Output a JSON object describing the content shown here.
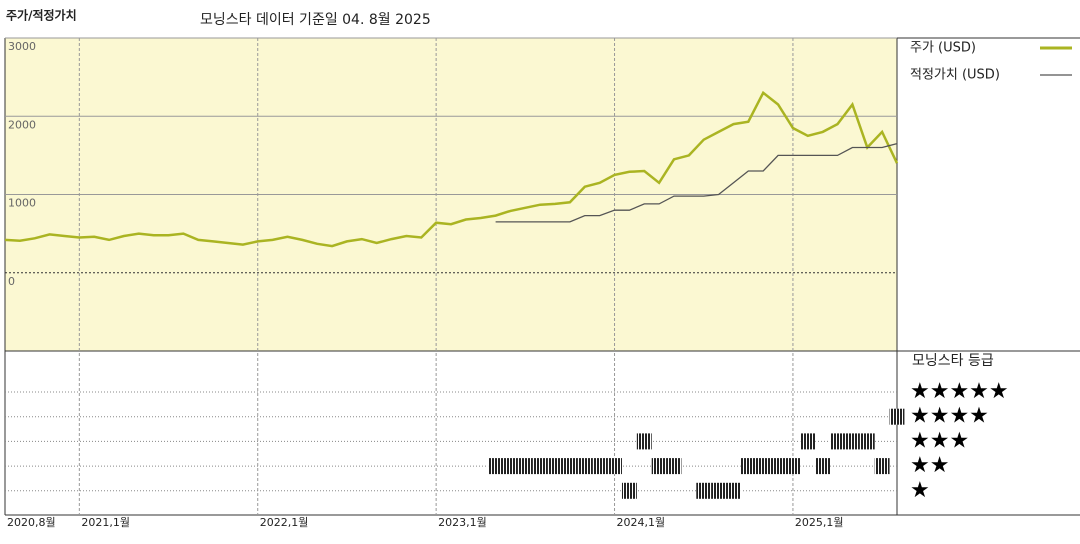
{
  "chart_data": {
    "type": "line",
    "title": "주가/적정가치",
    "subtitle": "모닝스타 데이터 기준일 04. 8월 2025",
    "x": [
      "2020-08",
      "2020-09",
      "2020-10",
      "2020-11",
      "2020-12",
      "2021-01",
      "2021-02",
      "2021-03",
      "2021-04",
      "2021-05",
      "2021-06",
      "2021-07",
      "2021-08",
      "2021-09",
      "2021-10",
      "2021-11",
      "2021-12",
      "2022-01",
      "2022-02",
      "2022-03",
      "2022-04",
      "2022-05",
      "2022-06",
      "2022-07",
      "2022-08",
      "2022-09",
      "2022-10",
      "2022-11",
      "2022-12",
      "2023-01",
      "2023-02",
      "2023-03",
      "2023-04",
      "2023-05",
      "2023-06",
      "2023-07",
      "2023-08",
      "2023-09",
      "2023-10",
      "2023-11",
      "2023-12",
      "2024-01",
      "2024-02",
      "2024-03",
      "2024-04",
      "2024-05",
      "2024-06",
      "2024-07",
      "2024-08",
      "2024-09",
      "2024-10",
      "2024-11",
      "2024-12",
      "2025-01",
      "2025-02",
      "2025-03",
      "2025-04",
      "2025-05",
      "2025-06",
      "2025-07",
      "2025-08"
    ],
    "series": [
      {
        "name": "주가 (USD)",
        "color": "#aab422",
        "values": [
          420,
          410,
          440,
          490,
          470,
          450,
          460,
          420,
          470,
          500,
          480,
          480,
          500,
          420,
          400,
          380,
          360,
          400,
          420,
          460,
          420,
          370,
          340,
          400,
          430,
          380,
          430,
          470,
          450,
          640,
          620,
          680,
          700,
          730,
          790,
          830,
          870,
          880,
          900,
          1100,
          1150,
          1250,
          1290,
          1300,
          1150,
          1450,
          1500,
          1700,
          1800,
          1900,
          1930,
          2300,
          2150,
          1850,
          1750,
          1800,
          1900,
          2150,
          1600,
          1800,
          1400
        ]
      },
      {
        "name": "적정가치 (USD)",
        "color": "#555555",
        "values": [
          null,
          null,
          null,
          null,
          null,
          null,
          null,
          null,
          null,
          null,
          null,
          null,
          null,
          null,
          null,
          null,
          null,
          null,
          null,
          null,
          null,
          null,
          null,
          null,
          null,
          null,
          null,
          null,
          null,
          null,
          null,
          null,
          null,
          650,
          650,
          650,
          650,
          650,
          650,
          730,
          730,
          800,
          800,
          880,
          880,
          980,
          980,
          980,
          1000,
          1150,
          1300,
          1300,
          1500,
          1500,
          1500,
          1500,
          1500,
          1600,
          1600,
          1600,
          1650
        ]
      }
    ],
    "rating": {
      "name": "모닝스타 등급",
      "labels": [
        "★★★★★",
        "★★★★",
        "★★★",
        "★★",
        "★"
      ],
      "values": [
        null,
        null,
        null,
        null,
        null,
        null,
        null,
        null,
        null,
        null,
        null,
        null,
        null,
        null,
        null,
        null,
        null,
        null,
        null,
        null,
        null,
        null,
        null,
        null,
        null,
        null,
        null,
        null,
        null,
        null,
        null,
        null,
        null,
        2,
        2,
        2,
        2,
        2,
        2,
        2,
        2,
        2,
        1,
        3,
        2,
        2,
        null,
        1,
        1,
        1,
        2,
        2,
        2,
        2,
        3,
        2,
        3,
        3,
        3,
        2,
        4
      ]
    },
    "xlim": [
      "2020-08",
      "2025-08"
    ],
    "xticks": [
      {
        "value": "2020-08",
        "label": "2020,8월"
      },
      {
        "value": "2021-01",
        "label": "2021,1월"
      },
      {
        "value": "2022-01",
        "label": "2022,1월"
      },
      {
        "value": "2023-01",
        "label": "2023,1월"
      },
      {
        "value": "2024-01",
        "label": "2024,1월"
      },
      {
        "value": "2025-01",
        "label": "2025,1월"
      }
    ],
    "ylim": [
      -1000,
      3000
    ],
    "yticks": [
      3000,
      2000,
      1000,
      0
    ],
    "grid": true,
    "background": "#fbf8d2"
  }
}
